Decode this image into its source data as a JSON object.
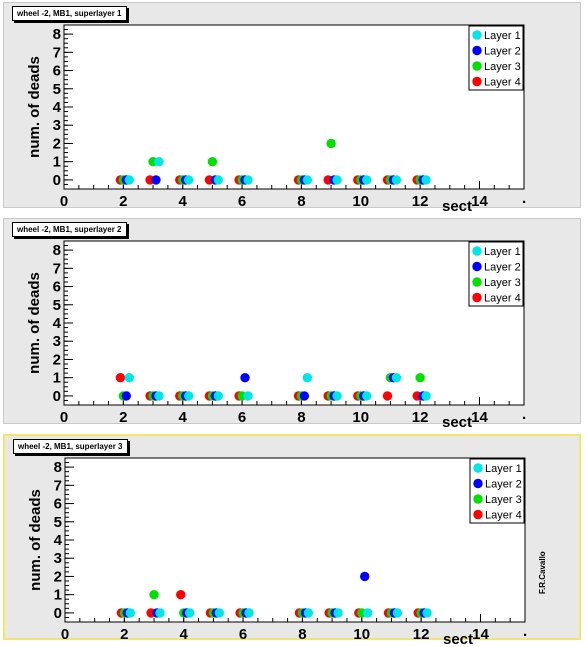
{
  "signature": "F.R.Cavallo",
  "chart_data": [
    {
      "type": "scatter",
      "title": "wheel -2, MB1, superlayer 1",
      "xlabel": "sect",
      "ylabel": "num. of deads",
      "xlim": [
        0,
        15.5
      ],
      "ylim": [
        -0.5,
        8.5
      ],
      "xticks": [
        "0",
        "2",
        "4",
        "6",
        "8",
        "10",
        "12",
        "14"
      ],
      "yticks": [
        "0",
        "1",
        "2",
        "3",
        "4",
        "5",
        "6",
        "7",
        "8"
      ],
      "legend_position": "top-right",
      "series": [
        {
          "name": "Layer 4",
          "color": "#ff0000",
          "x": [
            1.9,
            2.9,
            3.9,
            4.9,
            5.9,
            7.9,
            8.9,
            9.9,
            10.9,
            11.9
          ],
          "y": [
            0,
            0,
            0,
            0,
            0,
            0,
            0,
            0,
            0,
            0
          ]
        },
        {
          "name": "Layer 3",
          "color": "#00e000",
          "x": [
            2.0,
            3.0,
            4.0,
            5.0,
            6.0,
            8.0,
            9.0,
            10.0,
            11.0,
            12.0
          ],
          "y": [
            0,
            1,
            0,
            1,
            0,
            0,
            2,
            0,
            0,
            0
          ]
        },
        {
          "name": "Layer 2",
          "color": "#0000ff",
          "x": [
            2.1,
            3.1,
            4.1,
            5.1,
            6.1,
            8.1,
            9.1,
            10.1,
            11.1,
            12.1
          ],
          "y": [
            0,
            0,
            0,
            0,
            0,
            0,
            0,
            0,
            0,
            0
          ]
        },
        {
          "name": "Layer 1",
          "color": "#00e5e5",
          "x": [
            2.2,
            3.2,
            4.2,
            5.2,
            6.2,
            8.2,
            9.2,
            10.2,
            11.2,
            12.2
          ],
          "y": [
            0,
            1,
            0,
            0,
            0,
            0,
            0,
            0,
            0,
            0
          ]
        }
      ]
    },
    {
      "type": "scatter",
      "title": "wheel -2, MB1, superlayer 2",
      "xlabel": "sect",
      "ylabel": "num. of deads",
      "xlim": [
        0,
        15.5
      ],
      "ylim": [
        -0.5,
        8.5
      ],
      "xticks": [
        "0",
        "2",
        "4",
        "6",
        "8",
        "10",
        "12",
        "14"
      ],
      "yticks": [
        "0",
        "1",
        "2",
        "3",
        "4",
        "5",
        "6",
        "7",
        "8"
      ],
      "legend_position": "top-right",
      "series": [
        {
          "name": "Layer 4",
          "color": "#ff0000",
          "x": [
            1.9,
            2.9,
            3.9,
            4.9,
            5.9,
            7.9,
            8.9,
            9.9,
            10.9,
            11.9
          ],
          "y": [
            1,
            0,
            0,
            0,
            0,
            0,
            0,
            0,
            0,
            0
          ]
        },
        {
          "name": "Layer 3",
          "color": "#00e000",
          "x": [
            2.0,
            3.0,
            4.0,
            5.0,
            6.0,
            8.0,
            9.0,
            10.0,
            11.0,
            12.0
          ],
          "y": [
            0,
            0,
            0,
            0,
            0,
            0,
            0,
            0,
            1,
            1
          ]
        },
        {
          "name": "Layer 2",
          "color": "#0000ff",
          "x": [
            2.1,
            3.1,
            4.1,
            5.1,
            6.1,
            8.1,
            9.1,
            10.1,
            11.1,
            12.1
          ],
          "y": [
            0,
            0,
            0,
            0,
            1,
            0,
            0,
            0,
            1,
            0
          ]
        },
        {
          "name": "Layer 1",
          "color": "#00e5e5",
          "x": [
            2.2,
            3.2,
            4.2,
            5.2,
            6.2,
            8.2,
            9.2,
            10.2,
            11.2,
            12.2
          ],
          "y": [
            1,
            0,
            0,
            0,
            0,
            1,
            0,
            0,
            1,
            0
          ]
        }
      ]
    },
    {
      "type": "scatter",
      "title": "wheel -2, MB1, superlayer 3",
      "xlabel": "sect",
      "ylabel": "num. of deads",
      "xlim": [
        0,
        15.5
      ],
      "ylim": [
        -0.5,
        8.5
      ],
      "xticks": [
        "0",
        "2",
        "4",
        "6",
        "8",
        "10",
        "12",
        "14"
      ],
      "yticks": [
        "0",
        "1",
        "2",
        "3",
        "4",
        "5",
        "6",
        "7",
        "8"
      ],
      "legend_position": "top-right",
      "series": [
        {
          "name": "Layer 4",
          "color": "#ff0000",
          "x": [
            1.9,
            2.9,
            3.9,
            4.9,
            5.9,
            7.9,
            8.9,
            9.9,
            10.9,
            11.9
          ],
          "y": [
            0,
            0,
            1,
            0,
            0,
            0,
            0,
            0,
            0,
            0
          ]
        },
        {
          "name": "Layer 3",
          "color": "#00e000",
          "x": [
            2.0,
            3.0,
            4.0,
            5.0,
            6.0,
            8.0,
            9.0,
            10.0,
            11.0,
            12.0
          ],
          "y": [
            0,
            1,
            0,
            0,
            0,
            0,
            0,
            0,
            0,
            0
          ]
        },
        {
          "name": "Layer 2",
          "color": "#0000ff",
          "x": [
            2.1,
            3.1,
            4.1,
            5.1,
            6.1,
            8.1,
            9.1,
            10.1,
            11.1,
            12.1
          ],
          "y": [
            0,
            0,
            0,
            0,
            0,
            0,
            0,
            2,
            0,
            0
          ]
        },
        {
          "name": "Layer 1",
          "color": "#00e5e5",
          "x": [
            2.2,
            3.2,
            4.2,
            5.2,
            6.2,
            8.2,
            9.2,
            10.2,
            11.2,
            12.2
          ],
          "y": [
            0,
            0,
            0,
            0,
            0,
            0,
            0,
            0,
            0,
            0
          ]
        }
      ]
    }
  ]
}
